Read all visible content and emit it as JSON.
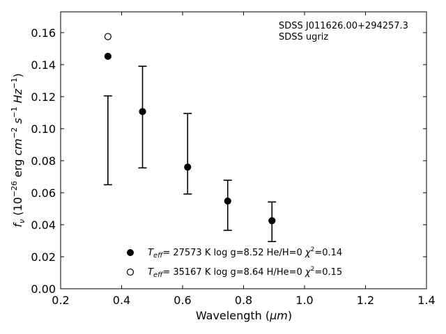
{
  "chart_data": {
    "type": "scatter",
    "xlabel_main": "Wavelength (",
    "xlabel_unit": "μm",
    "xlabel_close": ")",
    "ylabel_f": "f",
    "ylabel_nu": "ν",
    "ylabel_paren_open": " (10",
    "ylabel_exp1": "−26",
    "ylabel_erg": " erg ",
    "ylabel_cm": "cm",
    "ylabel_exp2": "−2",
    "ylabel_s": " s",
    "ylabel_exp3": "−1",
    "ylabel_hz": " Hz",
    "ylabel_exp4": "−1",
    "ylabel_close": ")",
    "xlim": [
      0.2,
      1.4
    ],
    "ylim": [
      0.0,
      0.173
    ],
    "xticks": [
      0.2,
      0.4,
      0.6,
      0.8,
      1.0,
      1.2,
      1.4
    ],
    "xtick_labels": [
      "0.2",
      "0.4",
      "0.6",
      "0.8",
      "1.0",
      "1.2",
      "1.4"
    ],
    "yticks": [
      0.0,
      0.02,
      0.04,
      0.06,
      0.08,
      0.1,
      0.12,
      0.14,
      0.16
    ],
    "ytick_labels": [
      "0.00",
      "0.02",
      "0.04",
      "0.06",
      "0.08",
      "0.10",
      "0.12",
      "0.14",
      "0.16"
    ],
    "annotation_line1": "SDSS J011626.00+294257.3",
    "annotation_line2": "SDSS ugriz",
    "observed": {
      "x": [
        0.3551,
        0.4686,
        0.6166,
        0.748,
        0.8932
      ],
      "y_low": [
        0.065,
        0.0755,
        0.0592,
        0.0365,
        0.0295
      ],
      "y_high": [
        0.1205,
        0.139,
        0.1095,
        0.0678,
        0.0542
      ]
    },
    "series": [
      {
        "marker": "filled-circle",
        "color": "#000000",
        "x": [
          0.3551,
          0.4686,
          0.6166,
          0.748,
          0.8932
        ],
        "y": [
          0.1452,
          0.1107,
          0.076,
          0.0548,
          0.0425
        ],
        "legend_teff": "T",
        "legend_eff": "eff",
        "legend_rest": "= 27573 K  log g=8.52  He/H=0  ",
        "legend_chi": "χ",
        "legend_chi_exp": "2",
        "legend_chi_val": "=0.14"
      },
      {
        "marker": "open-circle",
        "color": "#000000",
        "x": [
          0.3551
        ],
        "y": [
          0.1575
        ],
        "legend_teff": "T",
        "legend_eff": "eff",
        "legend_rest": "= 35167 K  log g=8.64  H/He=0  ",
        "legend_chi": "χ",
        "legend_chi_exp": "2",
        "legend_chi_val": "=0.15"
      }
    ],
    "legend_position": "bottom-center",
    "grid": false
  }
}
